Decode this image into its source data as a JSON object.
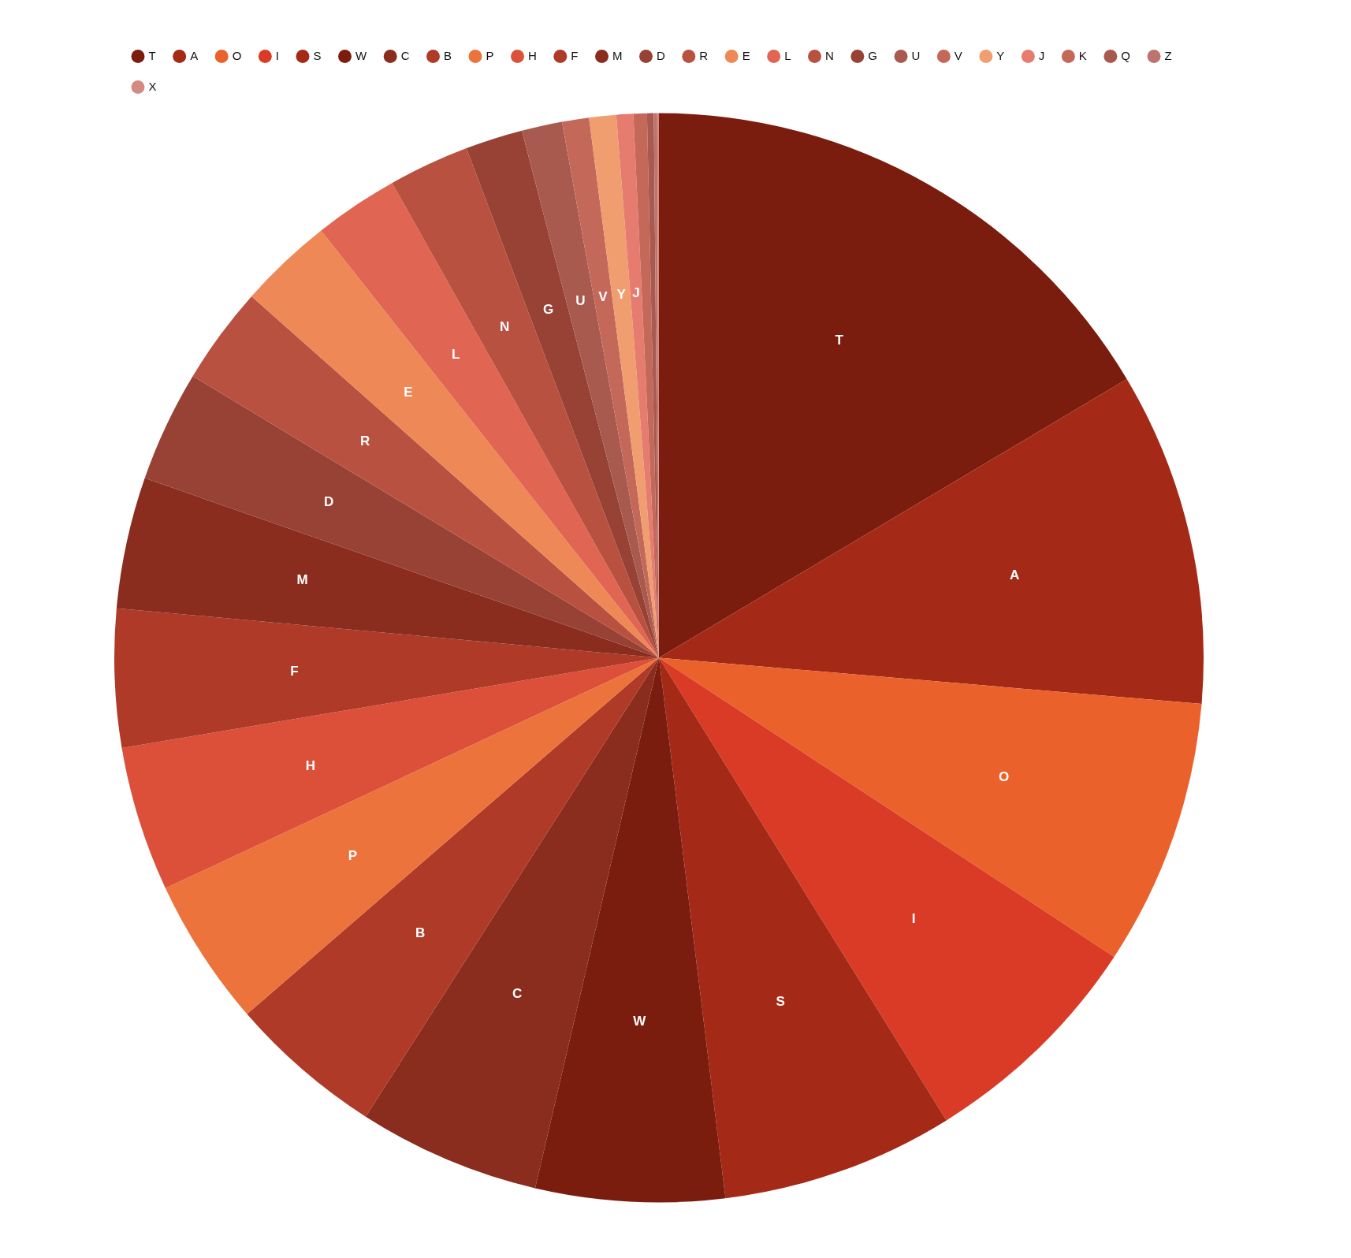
{
  "chart_data": {
    "type": "pie",
    "categories": [
      "T",
      "A",
      "O",
      "I",
      "S",
      "W",
      "C",
      "B",
      "P",
      "H",
      "F",
      "M",
      "D",
      "R",
      "E",
      "L",
      "N",
      "G",
      "U",
      "V",
      "Y",
      "J",
      "K",
      "Q",
      "Z",
      "X"
    ],
    "values": [
      16.45,
      9.9,
      7.9,
      6.9,
      6.9,
      5.6,
      5.4,
      4.6,
      4.4,
      4.3,
      4.1,
      3.9,
      3.3,
      2.9,
      2.8,
      2.5,
      2.4,
      1.7,
      1.2,
      0.8,
      0.8,
      0.5,
      0.4,
      0.2,
      0.1,
      0.05
    ],
    "colors": [
      "#7b1d0e",
      "#a42a17",
      "#ea612b",
      "#da3b26",
      "#a42a17",
      "#7b1d0e",
      "#8a2c1e",
      "#ae3a27",
      "#ec733c",
      "#dc4f39",
      "#ae3a27",
      "#8a2c1e",
      "#974234",
      "#b95140",
      "#ee8856",
      "#e06553",
      "#b95140",
      "#974234",
      "#a95a4f",
      "#c4695a",
      "#f09d70",
      "#e67c6f",
      "#c4695a",
      "#a95a4f",
      "#bd7470",
      "#d38a80"
    ],
    "value_labels": [
      "T",
      "A",
      "O",
      "I",
      "S",
      "W",
      "C",
      "B",
      "P",
      "H",
      "F",
      "M",
      "D",
      "R",
      "E",
      "L",
      "N",
      "G",
      "U",
      "V",
      "Y",
      "J",
      null,
      null,
      null,
      null
    ],
    "legend": "top left"
  }
}
